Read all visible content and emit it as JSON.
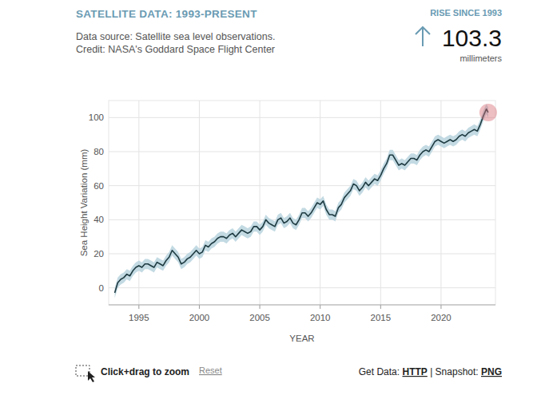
{
  "header": {
    "rise_label": "RISE SINCE 1993",
    "rise_value": 103.3,
    "rise_unit": "millimeters"
  },
  "chart_data": {
    "type": "line",
    "title": "SATELLITE DATA: 1993-PRESENT",
    "subtitle": [
      "Data source: Satellite sea level observations.",
      "Credit: NASA's Goddard Space Flight Center"
    ],
    "xlabel": "YEAR",
    "ylabel": "Sea Height Variation (mm)",
    "color": "#1f3b42",
    "x": [
      1993,
      1993.25,
      1993.5,
      1993.75,
      1994,
      1994.25,
      1994.5,
      1994.75,
      1995,
      1995.25,
      1995.5,
      1995.75,
      1996,
      1996.25,
      1996.5,
      1996.75,
      1997,
      1997.25,
      1997.5,
      1997.75,
      1998,
      1998.25,
      1998.5,
      1998.75,
      1999,
      1999.25,
      1999.5,
      1999.75,
      2000,
      2000.25,
      2000.5,
      2000.75,
      2001,
      2001.25,
      2001.5,
      2001.75,
      2002,
      2002.25,
      2002.5,
      2002.75,
      2003,
      2003.25,
      2003.5,
      2003.75,
      2004,
      2004.25,
      2004.5,
      2004.75,
      2005,
      2005.25,
      2005.5,
      2005.75,
      2006,
      2006.25,
      2006.5,
      2006.75,
      2007,
      2007.25,
      2007.5,
      2007.75,
      2008,
      2008.25,
      2008.5,
      2008.75,
      2009,
      2009.25,
      2009.5,
      2009.75,
      2010,
      2010.25,
      2010.5,
      2010.75,
      2011,
      2011.25,
      2011.5,
      2011.75,
      2012,
      2012.25,
      2012.5,
      2012.75,
      2013,
      2013.25,
      2013.5,
      2013.75,
      2014,
      2014.25,
      2014.5,
      2014.75,
      2015,
      2015.25,
      2015.5,
      2015.75,
      2016,
      2016.25,
      2016.5,
      2016.75,
      2017,
      2017.25,
      2017.5,
      2017.75,
      2018,
      2018.25,
      2018.5,
      2018.75,
      2019,
      2019.25,
      2019.5,
      2019.75,
      2020,
      2020.25,
      2020.5,
      2020.75,
      2021,
      2021.25,
      2021.5,
      2021.75,
      2022,
      2022.25,
      2022.5,
      2022.75,
      2023,
      2023.25,
      2023.5,
      2023.75,
      2023.9
    ],
    "values": [
      -3,
      3,
      5,
      6,
      8,
      7,
      10,
      12,
      13,
      12,
      14,
      14,
      13,
      12,
      15,
      14,
      13,
      16,
      18,
      22,
      20,
      18,
      14,
      15,
      17,
      18,
      20,
      22,
      20,
      21,
      25,
      24,
      26,
      27,
      29,
      30,
      30,
      29,
      31,
      32,
      30,
      32,
      34,
      33,
      32,
      33,
      36,
      36,
      34,
      36,
      40,
      38,
      37,
      36,
      40,
      41,
      38,
      39,
      41,
      38,
      37,
      40,
      44,
      44,
      42,
      44,
      47,
      50,
      49,
      51,
      46,
      43,
      43,
      42,
      47,
      49,
      53,
      55,
      57,
      61,
      60,
      57,
      59,
      62,
      60,
      62,
      64,
      63,
      66,
      70,
      73,
      78,
      78,
      75,
      72,
      73,
      72,
      74,
      76,
      76,
      75,
      78,
      80,
      81,
      80,
      83,
      86,
      87,
      86,
      85,
      86,
      87,
      86,
      87,
      89,
      90,
      89,
      91,
      92,
      93,
      92,
      96,
      101,
      105,
      103
    ],
    "uncertainty": 3,
    "xlim": [
      1992.5,
      2024.5
    ],
    "xticks": [
      1995,
      2000,
      2005,
      2010,
      2015,
      2020
    ],
    "ylim": [
      -10,
      110
    ],
    "yticks": [
      0,
      20,
      40,
      60,
      80,
      100
    ],
    "grid": true
  },
  "footer": {
    "zoom_hint": "Click+drag to zoom",
    "reset": "Reset",
    "get_data": "Get Data:",
    "http": "HTTP",
    "separator": "|",
    "snapshot": "Snapshot:",
    "png": "PNG"
  }
}
